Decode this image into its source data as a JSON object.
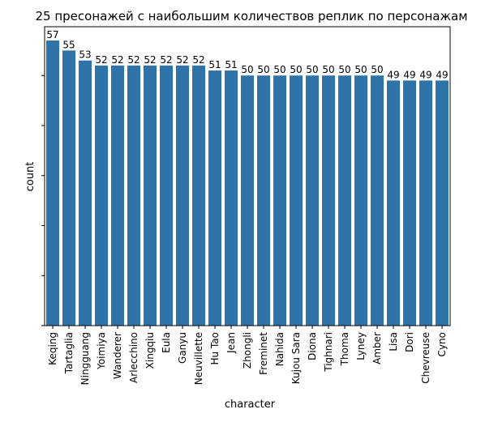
{
  "chart_data": {
    "type": "bar",
    "title": "25 пресонажей с наибольшим количествов реплик по персонажам",
    "xlabel": "character",
    "ylabel": "count",
    "categories": [
      "Keqing",
      "Tartaglia",
      "Ningguang",
      "Yoimiya",
      "Wanderer",
      "Arlecchino",
      "Xingqiu",
      "Eula",
      "Ganyu",
      "Neuvillette",
      "Hu Tao",
      "Jean",
      "Zhongli",
      "Freminet",
      "Nahida",
      "Kujou Sara",
      "Diona",
      "Tighnari",
      "Thoma",
      "Lyney",
      "Amber",
      "Lisa",
      "Dori",
      "Chevreuse",
      "Cyno"
    ],
    "values": [
      57,
      55,
      53,
      52,
      52,
      52,
      52,
      52,
      52,
      52,
      51,
      51,
      50,
      50,
      50,
      50,
      50,
      50,
      50,
      50,
      50,
      49,
      49,
      49,
      49
    ],
    "ylim": [
      0,
      57
    ],
    "y_tick_labels_visible": false,
    "grid": false,
    "bar_color": "#2f74a8",
    "data_labels": true
  }
}
